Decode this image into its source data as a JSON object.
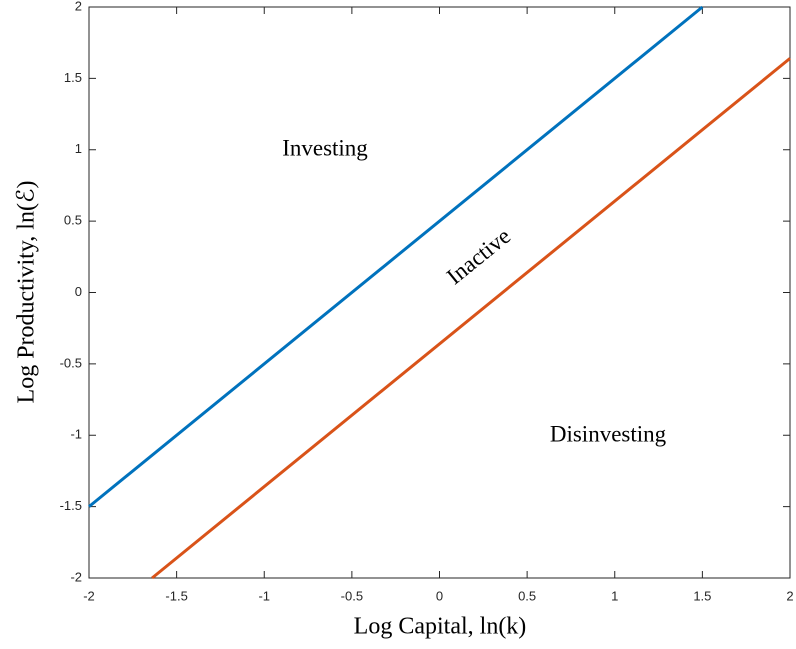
{
  "chart_data": {
    "type": "line",
    "xlabel": "Log Capital, ln(k)",
    "ylabel": "Log Productivity, ln(ℰ)",
    "series": [
      {
        "x": [
          -2,
          1.5
        ],
        "values": [
          -1.5,
          2
        ],
        "color": "#0072bd"
      },
      {
        "x": [
          -1.64,
          2
        ],
        "values": [
          -2,
          1.64
        ],
        "color": "#d95319"
      }
    ],
    "annotations": [
      "Investing",
      "Inactive",
      "Disinvesting"
    ],
    "xlim": [
      -2,
      2
    ],
    "xticks": [
      -2,
      -1.5,
      -1,
      -0.5,
      0,
      0.5,
      1,
      1.5,
      2
    ],
    "ylim": [
      -2,
      2
    ],
    "yticks": [
      -2,
      -1.5,
      -1,
      -0.5,
      0,
      0.5,
      1,
      1.5,
      2
    ]
  }
}
